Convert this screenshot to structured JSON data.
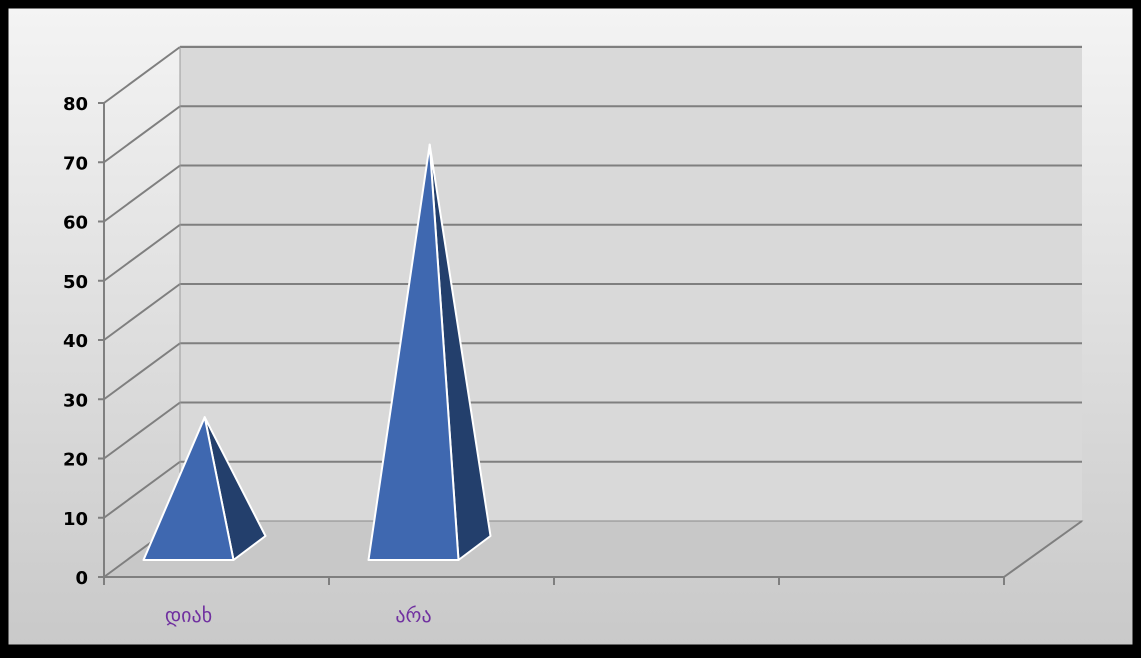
{
  "colors": {
    "border": "#000000",
    "plot_back": "#d9d9d9",
    "plot_floor": "#c8c8c8",
    "gridline": "#7f7f7f",
    "pyramid_front": "#3f68b0",
    "pyramid_side": "#233f6c",
    "pyramid_edge": "#ffffff",
    "category_label": "#7030a0"
  },
  "chart_data": {
    "type": "bar",
    "style": "3d-pyramid",
    "categories": [
      "დიახ",
      "არა",
      "",
      ""
    ],
    "values": [
      29,
      75,
      null,
      null
    ],
    "ylim": [
      0,
      80
    ],
    "yticks": [
      0,
      10,
      20,
      30,
      40,
      50,
      60,
      70,
      80
    ],
    "title": "",
    "xlabel": "",
    "ylabel": "",
    "grid": true,
    "legend": "none"
  }
}
